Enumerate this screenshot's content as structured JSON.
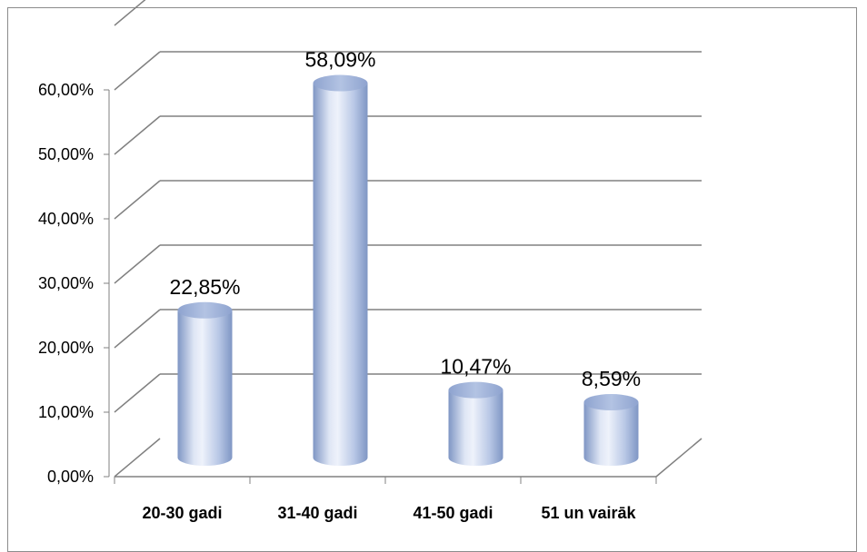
{
  "chart_data": {
    "type": "bar",
    "style": "3d-cylinder",
    "categories": [
      "20-30 gadi",
      "31-40 gadi",
      "41-50 gadi",
      "51 un vairāk"
    ],
    "values": [
      22.85,
      58.09,
      10.47,
      8.59
    ],
    "data_labels": [
      "22,85%",
      "58,09%",
      "10,47%",
      "8,59%"
    ],
    "y_ticks": [
      "0,00%",
      "10,00%",
      "20,00%",
      "30,00%",
      "40,00%",
      "50,00%",
      "60,00%"
    ],
    "ylim": [
      0,
      60
    ],
    "grid": true,
    "legend": "none",
    "colors": {
      "bar_light": "#eef2fb",
      "bar_mid": "#b9c8e6",
      "bar_dark": "#7f96c4",
      "top_fill": "#9fb3d8",
      "grid": "#808080"
    }
  }
}
